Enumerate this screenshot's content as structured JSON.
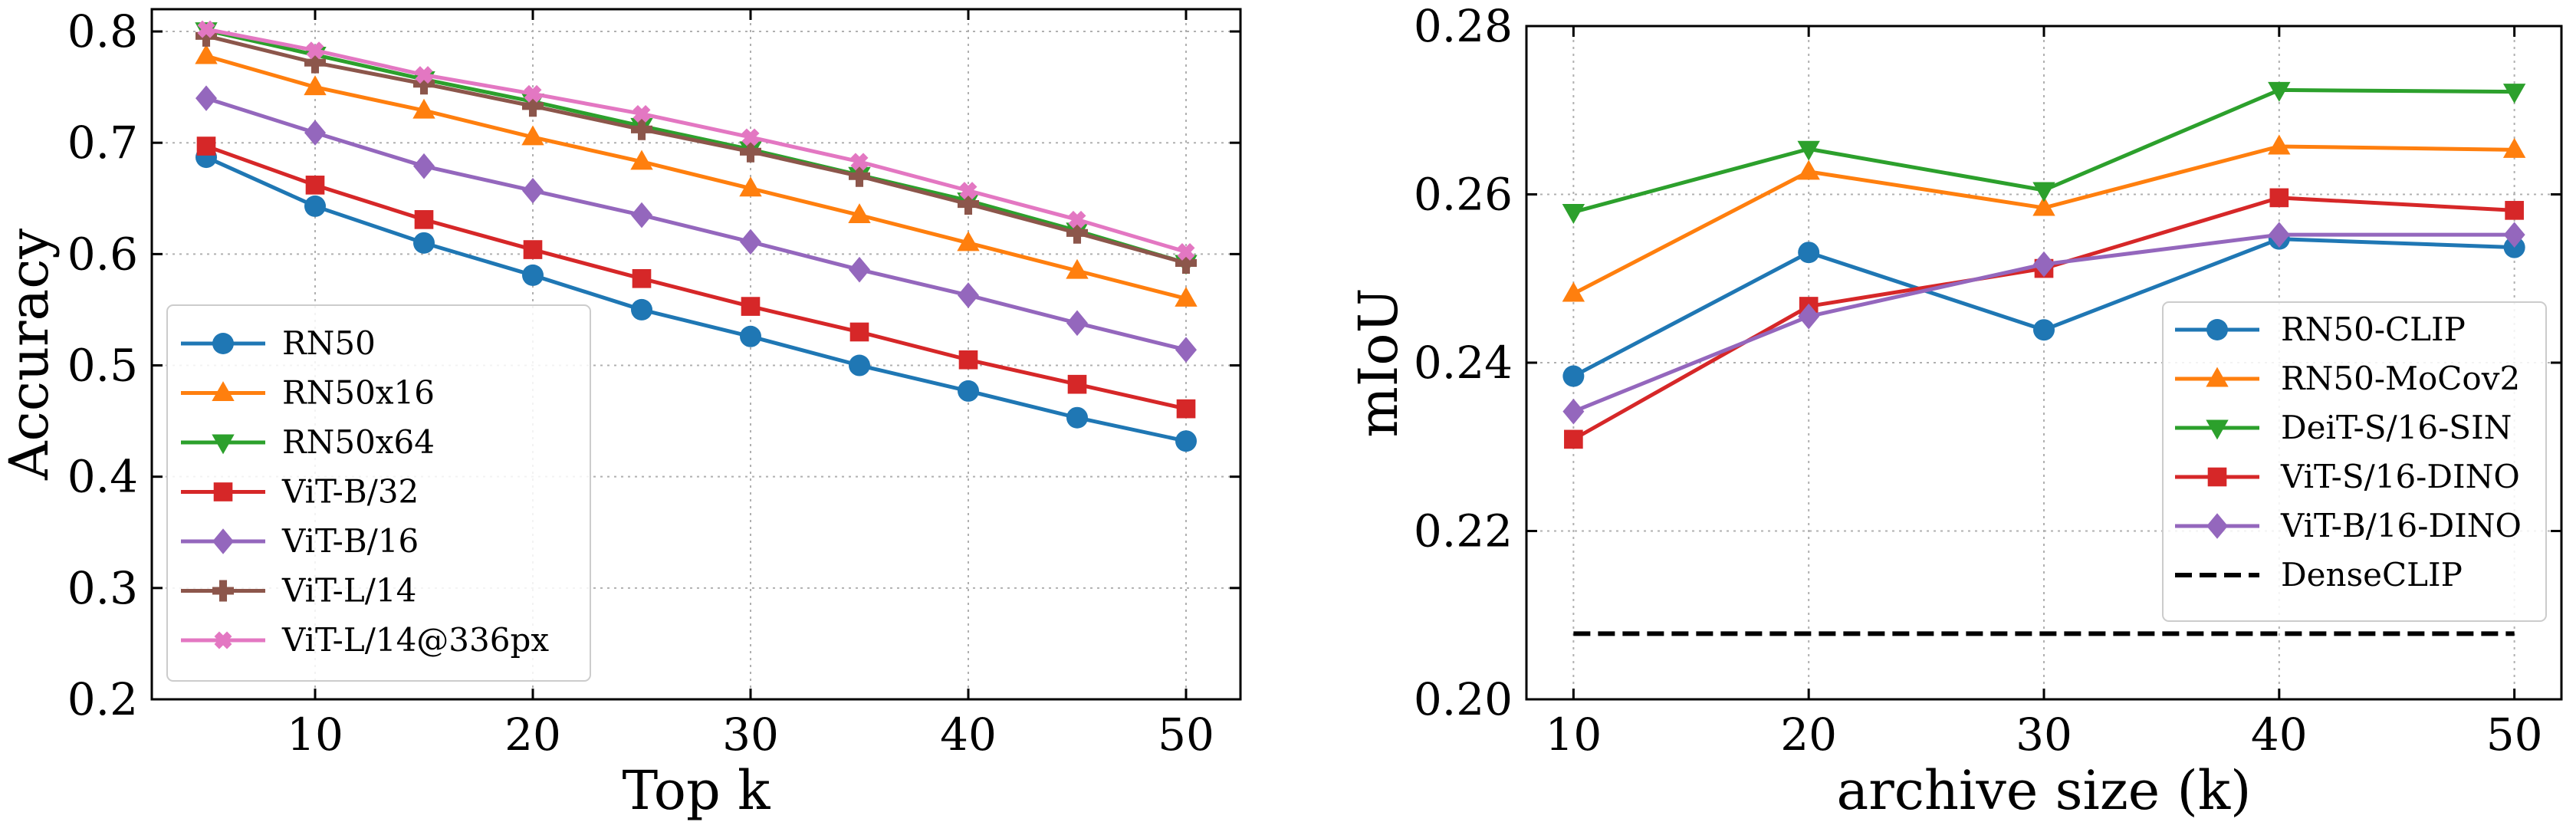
{
  "chart_data": [
    {
      "type": "line",
      "title": "",
      "xlabel": "Top k",
      "ylabel": "Accuracy",
      "xlim": [
        2.5,
        52.5
      ],
      "ylim": [
        0.2,
        0.82
      ],
      "x_ticks": [
        10,
        20,
        30,
        40,
        50
      ],
      "y_ticks": [
        0.2,
        0.3,
        0.4,
        0.5,
        0.6,
        0.7,
        0.8
      ],
      "grid": true,
      "legend_position": "lower-left",
      "x": [
        5,
        10,
        15,
        20,
        25,
        30,
        35,
        40,
        45,
        50
      ],
      "series": [
        {
          "name": "RN50",
          "color": "#1f77b4",
          "marker": "circle",
          "values": [
            0.687,
            0.643,
            0.61,
            0.581,
            0.55,
            0.526,
            0.5,
            0.477,
            0.453,
            0.432
          ]
        },
        {
          "name": "RN50x16",
          "color": "#ff7f0e",
          "marker": "triangle-up",
          "values": [
            0.778,
            0.75,
            0.729,
            0.705,
            0.683,
            0.659,
            0.635,
            0.61,
            0.585,
            0.56
          ]
        },
        {
          "name": "RN50x64",
          "color": "#2ca02c",
          "marker": "triangle-down",
          "values": [
            0.801,
            0.779,
            0.757,
            0.737,
            0.715,
            0.694,
            0.671,
            0.648,
            0.621,
            0.592
          ]
        },
        {
          "name": "ViT-B/32",
          "color": "#d62728",
          "marker": "square",
          "values": [
            0.697,
            0.662,
            0.631,
            0.604,
            0.578,
            0.553,
            0.53,
            0.505,
            0.483,
            0.461
          ]
        },
        {
          "name": "ViT-B/16",
          "color": "#9467bd",
          "marker": "diamond",
          "values": [
            0.74,
            0.709,
            0.679,
            0.657,
            0.635,
            0.611,
            0.586,
            0.563,
            0.538,
            0.514
          ]
        },
        {
          "name": "ViT-L/14",
          "color": "#8c564b",
          "marker": "plus",
          "values": [
            0.796,
            0.772,
            0.753,
            0.733,
            0.712,
            0.692,
            0.67,
            0.645,
            0.619,
            0.592
          ]
        },
        {
          "name": "ViT-L/14@336px",
          "color": "#e377c2",
          "marker": "x",
          "values": [
            0.802,
            0.783,
            0.761,
            0.744,
            0.726,
            0.705,
            0.683,
            0.657,
            0.631,
            0.602
          ]
        }
      ]
    },
    {
      "type": "line",
      "title": "",
      "xlabel": "archive size (k)",
      "ylabel": "mIoU",
      "xlim": [
        8,
        52
      ],
      "ylim": [
        0.2,
        0.28
      ],
      "x_ticks": [
        10,
        20,
        30,
        40,
        50
      ],
      "y_ticks": [
        0.2,
        0.22,
        0.24,
        0.26,
        0.28
      ],
      "y_tick_labels": [
        "0.20",
        "0.22",
        "0.24",
        "0.26",
        "0.28"
      ],
      "grid": true,
      "legend_position": "lower-right",
      "x": [
        10,
        20,
        30,
        40,
        50
      ],
      "series": [
        {
          "name": "RN50-CLIP",
          "color": "#1f77b4",
          "marker": "circle",
          "values": [
            0.2384,
            0.2531,
            0.2439,
            0.2547,
            0.2537
          ]
        },
        {
          "name": "RN50-MoCov2",
          "color": "#ff7f0e",
          "marker": "triangle-up",
          "values": [
            0.2482,
            0.2627,
            0.2584,
            0.2657,
            0.2653
          ]
        },
        {
          "name": "DeiT-S/16-SIN",
          "color": "#2ca02c",
          "marker": "triangle-down",
          "values": [
            0.2579,
            0.2654,
            0.2605,
            0.2724,
            0.2722
          ]
        },
        {
          "name": "ViT-S/16-DINO",
          "color": "#d62728",
          "marker": "square",
          "values": [
            0.2309,
            0.2467,
            0.2512,
            0.2596,
            0.2581
          ]
        },
        {
          "name": "ViT-B/16-DINO",
          "color": "#9467bd",
          "marker": "diamond",
          "values": [
            0.2342,
            0.2455,
            0.2517,
            0.2552,
            0.2552
          ]
        },
        {
          "name": "DenseCLIP",
          "color": "#000000",
          "marker": "none",
          "dashed": true,
          "values": [
            0.2078,
            0.2078,
            0.2078,
            0.2078,
            0.2078
          ]
        }
      ]
    }
  ]
}
